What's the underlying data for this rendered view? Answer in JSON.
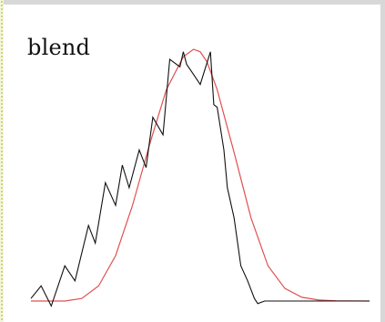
{
  "chart_data": {
    "type": "line",
    "label": "blend",
    "x_range": [
      0,
      1
    ],
    "y_range": [
      0,
      1
    ],
    "grid": false,
    "legend": "none",
    "series": [
      {
        "color": "#111111",
        "x": [
          0.0,
          0.03,
          0.06,
          0.1,
          0.13,
          0.17,
          0.19,
          0.22,
          0.25,
          0.27,
          0.29,
          0.32,
          0.34,
          0.36,
          0.39,
          0.41,
          0.44,
          0.45,
          0.46,
          0.48,
          0.5,
          0.53,
          0.54,
          0.55,
          0.57,
          0.58,
          0.6,
          0.62,
          0.64,
          0.66,
          0.67,
          0.69,
          0.71,
          0.74,
          0.75,
          0.77,
          0.8,
          0.82,
          0.85,
          0.87,
          0.9,
          0.92,
          0.94,
          0.96,
          0.98,
          1.0
        ],
        "y": [
          0.01,
          0.06,
          -0.02,
          0.14,
          0.08,
          0.3,
          0.23,
          0.47,
          0.38,
          0.54,
          0.45,
          0.6,
          0.53,
          0.73,
          0.66,
          0.96,
          0.93,
          0.99,
          0.94,
          0.9,
          0.86,
          0.99,
          0.78,
          0.77,
          0.6,
          0.45,
          0.33,
          0.14,
          0.08,
          0.01,
          -0.01,
          0.0,
          0.0,
          0.0,
          0.0,
          0.0,
          0.0,
          0.0,
          0.0,
          0.0,
          0.0,
          0.0,
          0.0,
          0.0,
          0.0,
          0.0
        ]
      },
      {
        "color": "#e05050",
        "x": [
          0.0,
          0.1,
          0.15,
          0.2,
          0.25,
          0.3,
          0.35,
          0.4,
          0.45,
          0.48,
          0.5,
          0.52,
          0.55,
          0.6,
          0.65,
          0.7,
          0.75,
          0.8,
          0.85,
          0.9,
          1.0
        ],
        "y": [
          0.0,
          0.0,
          0.01,
          0.06,
          0.18,
          0.38,
          0.62,
          0.84,
          0.97,
          1.0,
          0.99,
          0.95,
          0.84,
          0.59,
          0.33,
          0.14,
          0.05,
          0.015,
          0.004,
          0.001,
          0.0
        ]
      }
    ]
  }
}
